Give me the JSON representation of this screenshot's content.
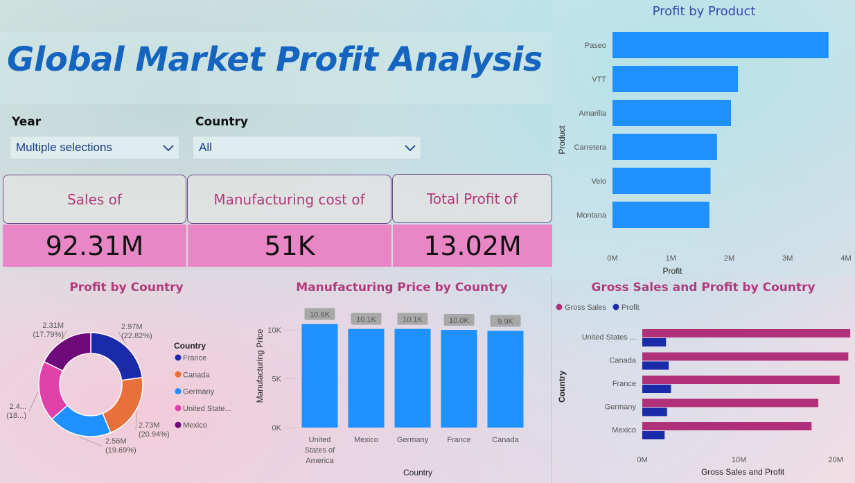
{
  "dashboard": {
    "title": "Global Market Profit Analysis"
  },
  "slicers": {
    "year": {
      "label": "Year",
      "value": "Multiple selections"
    },
    "country": {
      "label": "Country",
      "value": "All"
    }
  },
  "cards": [
    {
      "label": "Sales of",
      "value": "92.31M"
    },
    {
      "label": "Manufacturing cost of",
      "value": "51K"
    },
    {
      "label": "Total Profit of",
      "value": "13.02M"
    }
  ],
  "colors": {
    "blue": "#1e90ff",
    "navy": "#1a2aa8",
    "magenta": "#b0307a",
    "title_blue": "#1565c0",
    "card_pink": "#e987c6",
    "orange": "#e8703a",
    "pink": "#e040a8",
    "purple": "#6e0a7a"
  },
  "chart_data": [
    {
      "id": "profit_by_product",
      "type": "bar",
      "orientation": "horizontal",
      "title": "Profit by Product",
      "xlabel": "Profit",
      "ylabel": "Product",
      "categories": [
        "Paseo",
        "VTT",
        "Amarilla",
        "Carretera",
        "Velo",
        "Montana"
      ],
      "values": [
        3.7,
        2.15,
        2.03,
        1.79,
        1.68,
        1.66
      ],
      "value_unit": "M",
      "xlim": [
        0,
        4
      ],
      "xticks": [
        "0M",
        "1M",
        "2M",
        "3M",
        "4M"
      ],
      "color": "#1e90ff"
    },
    {
      "id": "profit_by_country",
      "type": "pie",
      "donut": true,
      "title": "Profit by Country",
      "legend_title": "Country",
      "legend_position": "right",
      "slices": [
        {
          "name": "France",
          "legend": "France",
          "value": 2.97,
          "label": "2.97M",
          "pct": "(22.82%)",
          "color": "#1a2aa8"
        },
        {
          "name": "Canada",
          "legend": "Canada",
          "value": 2.73,
          "label": "2.73M",
          "pct": "(20.94%)",
          "color": "#e8703a"
        },
        {
          "name": "Germany",
          "legend": "Germany",
          "value": 2.56,
          "label": "2.56M",
          "pct": "(19.69%)",
          "color": "#1e90ff"
        },
        {
          "name": "United States of America",
          "legend": "United State...",
          "value": 2.45,
          "label": "2.4...",
          "pct": "(18...)",
          "color": "#e040a8"
        },
        {
          "name": "Mexico",
          "legend": "Mexico",
          "value": 2.31,
          "label": "2.31M",
          "pct": "(17.79%)",
          "color": "#6e0a7a"
        }
      ]
    },
    {
      "id": "manufacturing_price_by_country",
      "type": "bar",
      "orientation": "vertical",
      "title": "Manufacturing Price by Country",
      "xlabel": "Country",
      "ylabel": "Manufacturing Price",
      "categories": [
        [
          "United",
          "States of",
          "America"
        ],
        [
          "Mexico"
        ],
        [
          "Germany"
        ],
        [
          "France"
        ],
        [
          "Canada"
        ]
      ],
      "values": [
        10.6,
        10.1,
        10.1,
        10.0,
        9.9
      ],
      "data_labels": [
        "10.6K",
        "10.1K",
        "10.1K",
        "10.0K",
        "9.9K"
      ],
      "value_unit": "K",
      "ylim": [
        0,
        10.5
      ],
      "yticks": [
        "0K",
        "5K",
        "10K"
      ],
      "color": "#1e90ff"
    },
    {
      "id": "gross_sales_profit_by_country",
      "type": "bar",
      "orientation": "horizontal",
      "title": "Gross Sales and Profit by Country",
      "xlabel": "Gross Sales and Profit",
      "ylabel": "Country",
      "legend_position": "top-left",
      "categories": [
        "United States ...",
        "Canada",
        "France",
        "Germany",
        "Mexico"
      ],
      "series": [
        {
          "name": "Gross Sales",
          "values": [
            21.5,
            21.3,
            20.4,
            18.2,
            17.5
          ],
          "color": "#b0307a"
        },
        {
          "name": "Profit",
          "values": [
            2.45,
            2.73,
            2.97,
            2.56,
            2.31
          ],
          "color": "#1a2aa8"
        }
      ],
      "value_unit": "M",
      "xlim": [
        0,
        25
      ],
      "xticks": [
        "0M",
        "10M",
        "20M"
      ]
    }
  ]
}
